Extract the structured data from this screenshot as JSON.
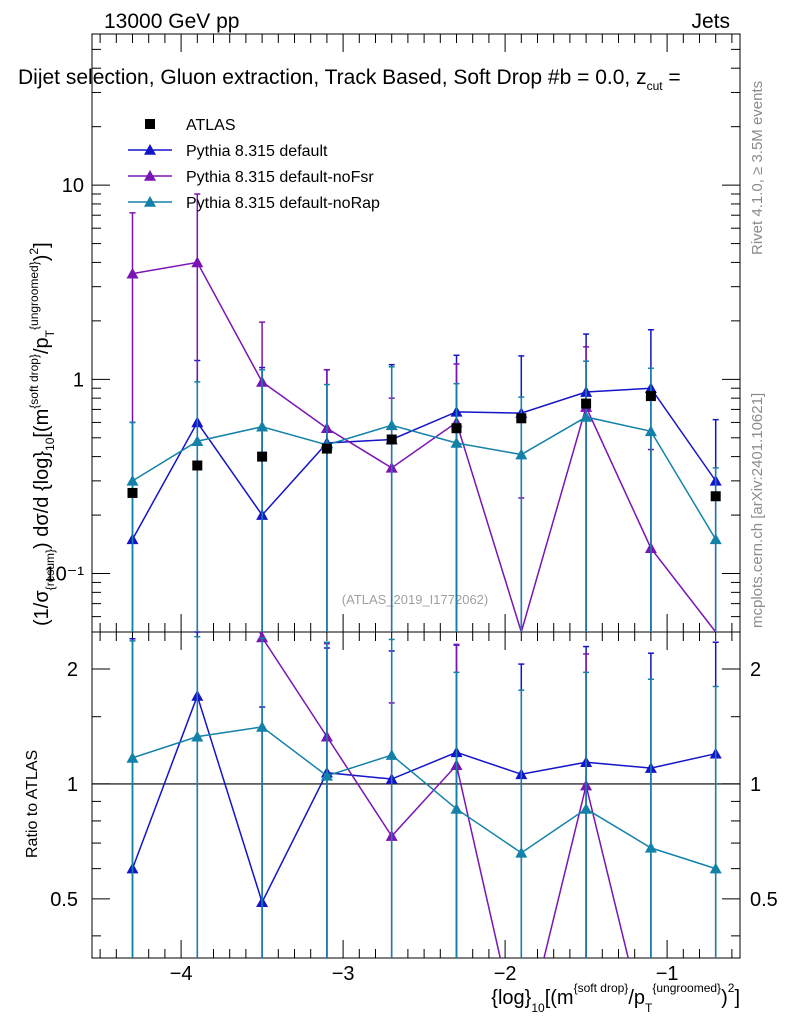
{
  "header": {
    "energy_label": "13000 GeV pp",
    "category": "Jets",
    "title": "Dijet selection, Gluon extraction, Track Based, Soft Drop #b = 0.0, z",
    "title_sub": "cut",
    "title_end": " ="
  },
  "side_labels": {
    "rivet": "Rivet 4.1.0, ≥ 3.5M events",
    "mcplots": "mcplots.cern.ch [arXiv:2401.10621]"
  },
  "analysis_id": "(ATLAS_2019_I1772062)",
  "axes": {
    "top_ylabel_pre": "(1/σ",
    "top_ylabel_sub1": "{resum}",
    "top_ylabel_mid": ") dσ/d {log}",
    "top_ylabel_sub2": "10",
    "top_ylabel_bracket": "[(m",
    "top_ylabel_sup1": "{soft drop}",
    "top_ylabel_slash": "/p",
    "top_ylabel_sub3": "T",
    "top_ylabel_sup2": "{ungroomed}",
    "top_ylabel_end": ")",
    "top_ylabel_sup3": "2",
    "top_ylabel_close": "]",
    "bottom_ylabel": "Ratio to ATLAS",
    "xlabel_pre": "{log}",
    "xlabel_sub1": "10",
    "xlabel_bracket": "[(m",
    "xlabel_sup1": "{soft drop}",
    "xlabel_slash": "/p",
    "xlabel_sub2": "T",
    "xlabel_sup2": "{ungroomed}",
    "xlabel_end": ")",
    "xlabel_sup3": "2",
    "xlabel_close": "]",
    "top_ticks": [
      "10⁻¹",
      "1",
      "10"
    ],
    "ratio_ticks": [
      "0.5",
      "1",
      "2"
    ],
    "x_ticks": [
      "−4",
      "−3",
      "−2",
      "−1"
    ]
  },
  "legend": [
    {
      "label": "ATLAS",
      "color": "#000000",
      "marker": "square"
    },
    {
      "label": "Pythia 8.315 default",
      "color": "#1414c8",
      "marker": "triangle"
    },
    {
      "label": "Pythia 8.315 default-noFsr",
      "color": "#7a14b4",
      "marker": "triangle"
    },
    {
      "label": "Pythia 8.315 default-noRap",
      "color": "#1482a8",
      "marker": "triangle"
    }
  ],
  "chart_data": {
    "type": "line",
    "xlim": [
      -4.55,
      -0.55
    ],
    "ylim_top": [
      0.05,
      60
    ],
    "ylim_ratio": [
      0.35,
      2.5
    ],
    "x": [
      -4.3,
      -3.9,
      -3.5,
      -3.1,
      -2.7,
      -2.3,
      -1.9,
      -1.5,
      -1.1,
      -0.7
    ],
    "data": {
      "name": "ATLAS",
      "values": [
        0.26,
        0.36,
        0.4,
        0.44,
        0.49,
        0.56,
        0.63,
        0.75,
        0.82,
        0.25
      ]
    },
    "series": [
      {
        "name": "Pythia 8.315 default",
        "color": "#1414c8",
        "values": [
          0.15,
          0.6,
          0.2,
          0.47,
          0.49,
          0.68,
          0.67,
          0.86,
          0.9,
          0.3
        ],
        "err_lo": [
          0.15,
          0.6,
          0.2,
          0.47,
          0.49,
          0.68,
          0.67,
          0.86,
          0.9,
          0.3
        ],
        "err_hi": [
          0.45,
          0.65,
          0.95,
          0.65,
          0.7,
          0.65,
          0.65,
          0.85,
          0.9,
          0.32
        ],
        "ratio": [
          0.6,
          1.7,
          0.49,
          1.07,
          1.03,
          1.21,
          1.06,
          1.14,
          1.1,
          1.2
        ],
        "ratio_err_hi": [
          1.8,
          1.5,
          1.1,
          1.2,
          1.2,
          1.1,
          1.0,
          1.15,
          1.1,
          1.15
        ]
      },
      {
        "name": "Pythia 8.315 default-noFsr",
        "color": "#7a14b4",
        "values": [
          3.5,
          4.0,
          0.97,
          0.56,
          0.35,
          0.6,
          0.045,
          0.72,
          0.135,
          0.045
        ],
        "err_lo": [
          2.9,
          3.0,
          0.72,
          0.56,
          0.35,
          0.6,
          0.045,
          0.72,
          0.135,
          0.045
        ],
        "err_hi": [
          3.7,
          5.0,
          1.0,
          0.56,
          0.45,
          0.6,
          0.2,
          0.75,
          0.3,
          0.2
        ],
        "ratio": [
          6.0,
          6.0,
          2.42,
          1.33,
          0.73,
          1.12,
          0.2,
          0.99,
          0.2,
          0.2
        ],
        "ratio_err_hi": [
          0,
          0,
          0,
          1.0,
          0.9,
          1.2,
          0,
          1.2,
          0,
          0
        ]
      },
      {
        "name": "Pythia 8.315 default-noRap",
        "color": "#1482a8",
        "values": [
          0.3,
          0.48,
          0.57,
          0.46,
          0.58,
          0.47,
          0.41,
          0.64,
          0.54,
          0.15
        ],
        "err_lo": [
          0.3,
          0.48,
          0.57,
          0.46,
          0.58,
          0.47,
          0.41,
          0.64,
          0.54,
          0.15
        ],
        "err_hi": [
          0.3,
          0.49,
          0.55,
          0.48,
          0.58,
          0.48,
          0.4,
          0.6,
          0.6,
          0.2
        ],
        "ratio": [
          1.17,
          1.33,
          1.41,
          1.05,
          1.19,
          0.86,
          0.66,
          0.86,
          0.68,
          0.6
        ],
        "ratio_err_hi": [
          1.2,
          1.1,
          1.0,
          1.3,
          1.2,
          1.1,
          1.1,
          1.1,
          1.2,
          1.2
        ]
      }
    ]
  }
}
